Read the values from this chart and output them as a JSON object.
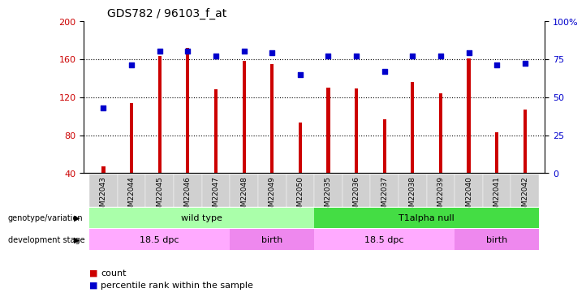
{
  "title": "GDS782 / 96103_f_at",
  "samples": [
    "GSM22043",
    "GSM22044",
    "GSM22045",
    "GSM22046",
    "GSM22047",
    "GSM22048",
    "GSM22049",
    "GSM22050",
    "GSM22035",
    "GSM22036",
    "GSM22037",
    "GSM22038",
    "GSM22039",
    "GSM22040",
    "GSM22041",
    "GSM22042"
  ],
  "counts": [
    47,
    114,
    163,
    172,
    128,
    158,
    155,
    93,
    130,
    129,
    97,
    136,
    124,
    161,
    83,
    107
  ],
  "percentile": [
    43,
    71,
    80,
    80,
    77,
    80,
    79,
    65,
    77,
    77,
    67,
    77,
    77,
    79,
    71,
    72
  ],
  "ylim_left": [
    40,
    200
  ],
  "ylim_right": [
    0,
    100
  ],
  "yticks_left": [
    40,
    80,
    120,
    160,
    200
  ],
  "yticks_right": [
    0,
    25,
    50,
    75,
    100
  ],
  "bar_color": "#cc0000",
  "dot_color": "#0000cc",
  "bar_width": 0.12,
  "grid_color": "#000000",
  "genotype_labels": [
    "wild type",
    "T1alpha null"
  ],
  "genotype_ranges": [
    [
      0,
      7
    ],
    [
      8,
      15
    ]
  ],
  "genotype_color_light": "#aaffaa",
  "genotype_color_dark": "#44dd44",
  "dev_stage_labels": [
    "18.5 dpc",
    "birth",
    "18.5 dpc",
    "birth"
  ],
  "dev_stage_ranges": [
    [
      0,
      4
    ],
    [
      5,
      7
    ],
    [
      8,
      12
    ],
    [
      13,
      15
    ]
  ],
  "dev_stage_color_light": "#ffaaff",
  "dev_stage_color_dark": "#ee88ee",
  "legend_count_color": "#cc0000",
  "legend_dot_color": "#0000cc",
  "tick_label_color_left": "#cc0000",
  "tick_label_color_right": "#0000cc",
  "title_fontsize": 10,
  "label_fontsize": 8,
  "sample_fontsize": 6.5
}
